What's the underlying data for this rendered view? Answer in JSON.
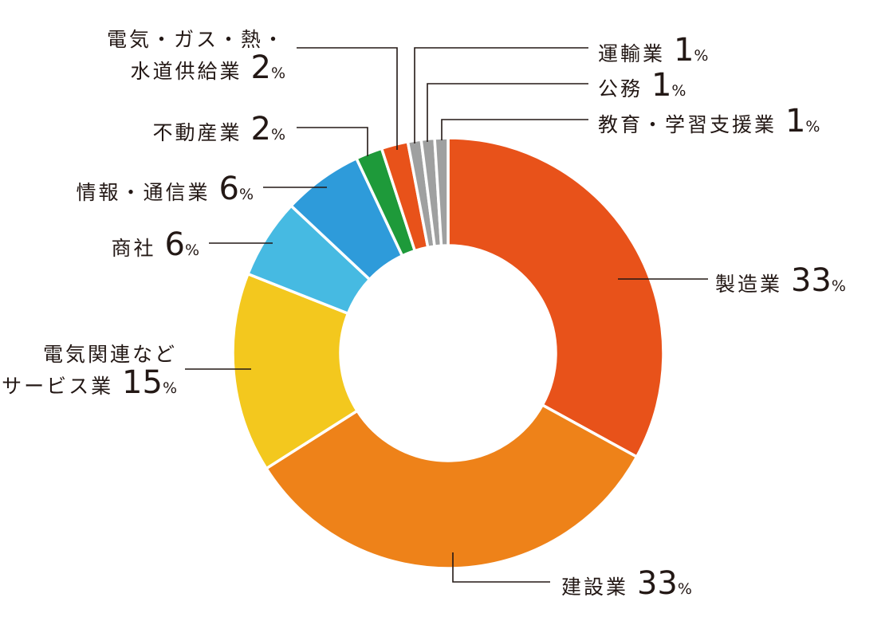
{
  "chart_data": {
    "type": "pie",
    "donut": true,
    "slices": [
      {
        "name": "製造業",
        "value": 33,
        "color": "#E8521A"
      },
      {
        "name": "建設業",
        "value": 33,
        "color": "#EE8219"
      },
      {
        "name": "電気関連など サービス業",
        "value": 15,
        "color": "#F3C81E"
      },
      {
        "name": "商社",
        "value": 6,
        "color": "#46BAE2"
      },
      {
        "name": "情報・通信業",
        "value": 6,
        "color": "#2E9BDA"
      },
      {
        "name": "不動産業",
        "value": 2,
        "color": "#1E9A3A"
      },
      {
        "name": "電気・ガス・熱・ 水道供給業",
        "value": 2,
        "color": "#E8521A"
      },
      {
        "name": "運輸業",
        "value": 1,
        "color": "#9FA0A0"
      },
      {
        "name": "公務",
        "value": 1,
        "color": "#9FA0A0"
      },
      {
        "name": "教育・学習支援業",
        "value": 1,
        "color": "#9FA0A0"
      }
    ]
  },
  "labels": [
    {
      "lines": [
        "製造業"
      ],
      "value": "33",
      "unit": "%"
    },
    {
      "lines": [
        "建設業"
      ],
      "value": "33",
      "unit": "%"
    },
    {
      "lines": [
        "電気関連など",
        "サービス業"
      ],
      "value": "15",
      "unit": "%"
    },
    {
      "lines": [
        "商社"
      ],
      "value": "6",
      "unit": "%"
    },
    {
      "lines": [
        "情報・通信業"
      ],
      "value": "6",
      "unit": "%"
    },
    {
      "lines": [
        "不動産業"
      ],
      "value": "2",
      "unit": "%"
    },
    {
      "lines": [
        "電気・ガス・熱・",
        "水道供給業"
      ],
      "value": "2",
      "unit": "%"
    },
    {
      "lines": [
        "運輸業"
      ],
      "value": "1",
      "unit": "%"
    },
    {
      "lines": [
        "公務"
      ],
      "value": "1",
      "unit": "%"
    },
    {
      "lines": [
        "教育・学習支援業"
      ],
      "value": "1",
      "unit": "%"
    }
  ]
}
